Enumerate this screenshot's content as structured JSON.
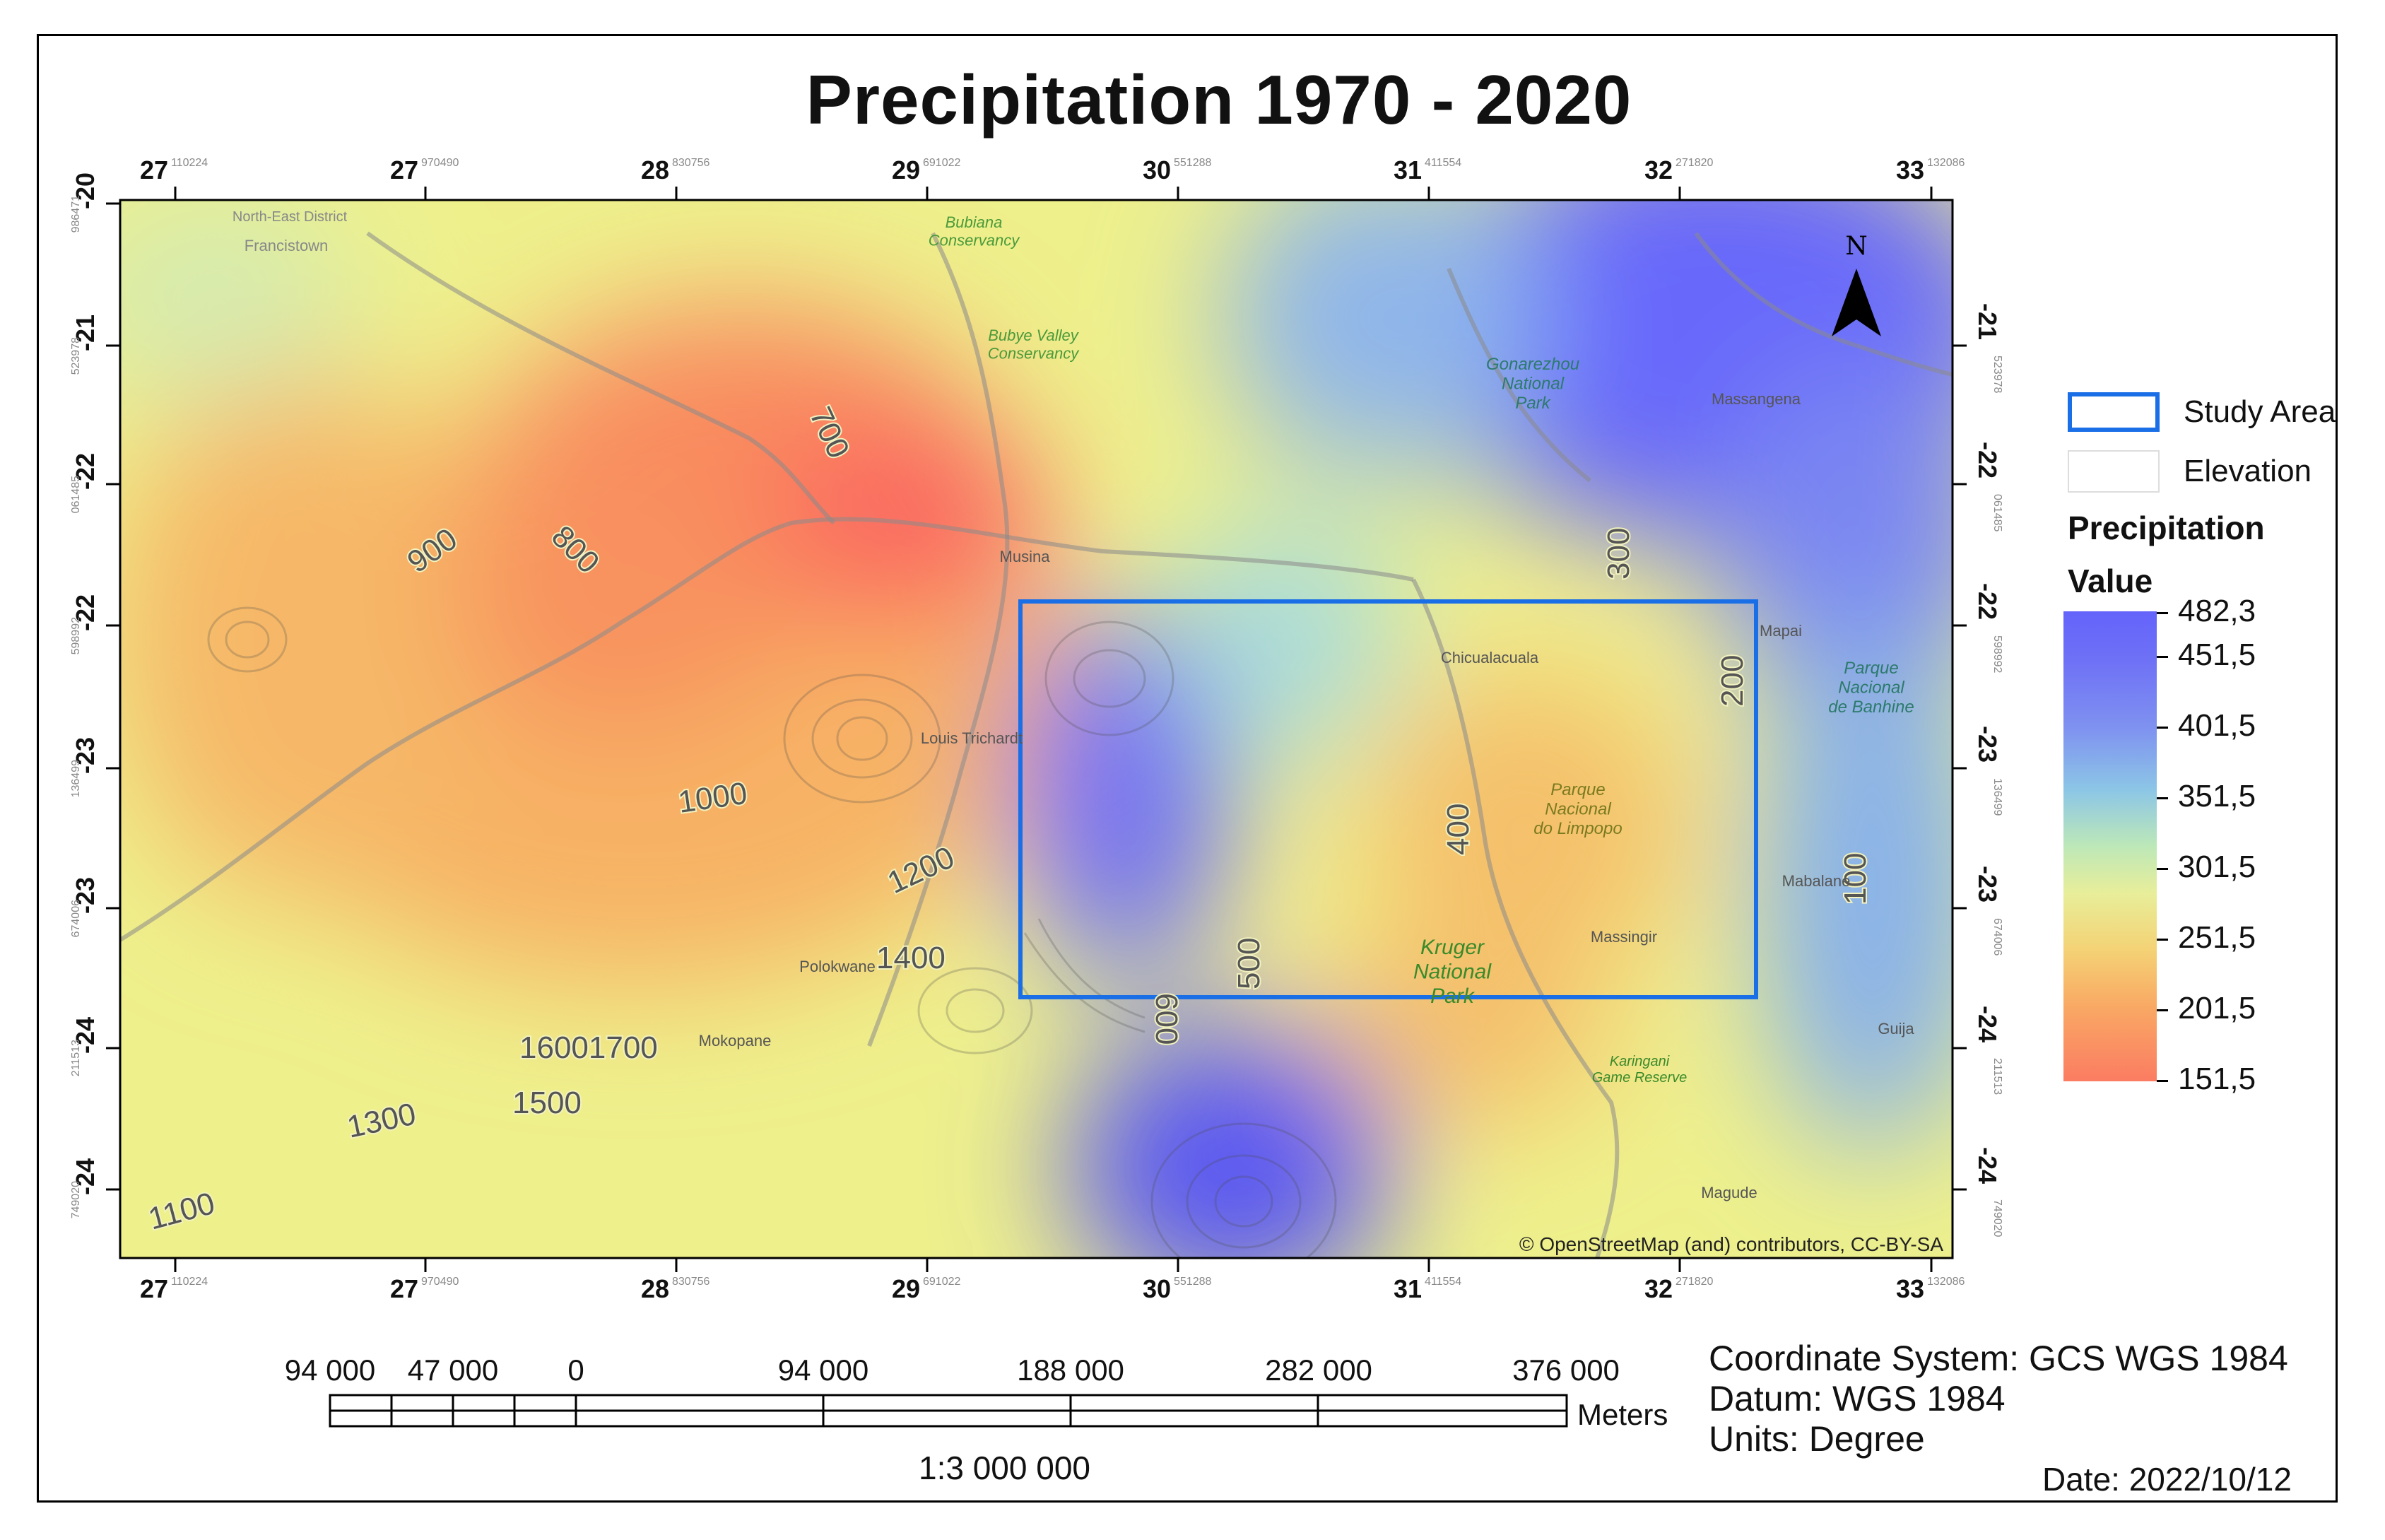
{
  "title": "Precipitation 1970 - 2020",
  "colors": {
    "study_area": "#1a6fe6",
    "contour": "#4a4a4a",
    "low": "#fb6f62",
    "mid": "#eef08c",
    "high": "#6464fb"
  },
  "axis": {
    "top_major": [
      "27",
      "27",
      "28",
      "29",
      "30",
      "31",
      "32",
      "33"
    ],
    "top_minor": [
      "110224",
      "970490",
      "830756",
      "691022",
      "551288",
      "411554",
      "271820",
      "132086"
    ],
    "bottom_major": [
      "27",
      "27",
      "28",
      "29",
      "30",
      "31",
      "32",
      "33"
    ],
    "bottom_minor": [
      "110224",
      "970490",
      "830756",
      "691022",
      "551288",
      "411554",
      "271820",
      "132086"
    ],
    "left_major": [
      "-20",
      "-21",
      "-22",
      "-22",
      "-23",
      "-23",
      "-24",
      "-24"
    ],
    "left_minor": [
      "986471",
      "523978",
      "061485",
      "598992",
      "136499",
      "674006",
      "211513",
      "749020"
    ],
    "right_major": [
      "-21",
      "-22",
      "-22",
      "-23",
      "-23",
      "-24",
      "-24"
    ],
    "right_minor": [
      "523978",
      "061485",
      "598992",
      "136499",
      "674006",
      "211513",
      "749020"
    ]
  },
  "contour_labels": [
    {
      "text": "700"
    },
    {
      "text": "800"
    },
    {
      "text": "900"
    },
    {
      "text": "1000"
    },
    {
      "text": "1200"
    },
    {
      "text": "1400"
    },
    {
      "text": "16001700"
    },
    {
      "text": "1500"
    },
    {
      "text": "1300"
    },
    {
      "text": "1100"
    },
    {
      "text": "600"
    },
    {
      "text": "500"
    },
    {
      "text": "400"
    },
    {
      "text": "300"
    },
    {
      "text": "200"
    },
    {
      "text": "100"
    }
  ],
  "place_labels": [
    "Francistown",
    "Bubiana Conservancy",
    "Bubye Valley Conservancy",
    "Gonarezhou National Park",
    "Massangena",
    "Musina",
    "Chicualacuala",
    "Mapai",
    "Parque Nacional de Banhine",
    "Louis Trichardt",
    "Parque Nacional do Limpopo",
    "Mabalane",
    "Massingir",
    "Kruger National Park",
    "Polokwane",
    "Mokopane",
    "Karingani Game Reserve",
    "Guija",
    "Magude",
    "North-East District"
  ],
  "attribution": "© OpenStreetMap (and) contributors, CC-BY-SA",
  "north_label": "N",
  "legend": {
    "study_area": "Study Area",
    "elevation": "Elevation",
    "heading": "Precipitation",
    "subheading": "Value",
    "values": [
      "482,3",
      "451,5",
      "401,5",
      "351,5",
      "301,5",
      "251,5",
      "201,5",
      "151,5"
    ]
  },
  "scale_bar": {
    "labels": [
      "94 000",
      "47 000",
      "0",
      "94 000",
      "188 000",
      "282 000",
      "376 000"
    ],
    "unit": "Meters",
    "ratio": "1:3 000 000"
  },
  "info": {
    "coordinate_system": "Coordinate System: GCS WGS 1984",
    "datum": "Datum: WGS 1984",
    "units": "Units: Degree",
    "date": "Date: 2022/10/12"
  }
}
